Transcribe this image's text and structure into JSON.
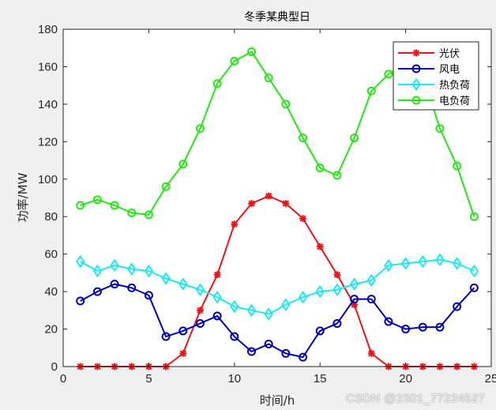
{
  "chart_data": {
    "type": "line",
    "title": "冬季某典型日",
    "xlabel": "时间/h",
    "ylabel": "功率/MW",
    "xlim": [
      0,
      25
    ],
    "ylim": [
      0,
      180
    ],
    "xticks": [
      "0",
      "5",
      "10",
      "15",
      "20",
      "25"
    ],
    "yticks": [
      "0",
      "20",
      "40",
      "60",
      "80",
      "100",
      "120",
      "140",
      "160",
      "180"
    ],
    "grid": false,
    "legend_position": "top-right",
    "x": [
      1,
      2,
      3,
      4,
      5,
      6,
      7,
      8,
      9,
      10,
      11,
      12,
      13,
      14,
      15,
      16,
      17,
      18,
      19,
      20,
      21,
      22,
      23,
      24
    ],
    "series": [
      {
        "name": "光伏",
        "color": "#e8161b",
        "marker": "asterisk",
        "values": [
          0,
          0,
          0,
          0,
          0,
          0,
          7,
          30,
          49,
          76,
          87,
          91,
          87,
          79,
          64,
          49,
          33,
          7,
          0,
          0,
          0,
          0,
          0,
          0
        ]
      },
      {
        "name": "风电",
        "color": "#0000b4",
        "marker": "circle",
        "values": [
          35,
          40,
          44,
          42,
          38,
          16,
          19,
          23,
          27,
          16,
          8,
          12,
          7,
          5,
          19,
          23,
          36,
          36,
          24,
          20,
          21,
          21,
          32,
          42
        ]
      },
      {
        "name": "热负荷",
        "color": "#20e8f0",
        "marker": "diamond",
        "values": [
          56,
          51,
          54,
          52,
          51,
          47,
          44,
          41,
          37,
          32,
          30,
          28,
          33,
          37,
          40,
          41,
          44,
          46,
          54,
          55,
          56,
          57,
          55,
          51
        ]
      },
      {
        "name": "电负荷",
        "color": "#27e617",
        "marker": "circle",
        "values": [
          86,
          89,
          86,
          82,
          81,
          96,
          108,
          127,
          151,
          163,
          168,
          154,
          140,
          122,
          106,
          102,
          122,
          147,
          156,
          162,
          155,
          127,
          107,
          80
        ]
      }
    ]
  },
  "watermark": "CSDN @2301_77224527"
}
